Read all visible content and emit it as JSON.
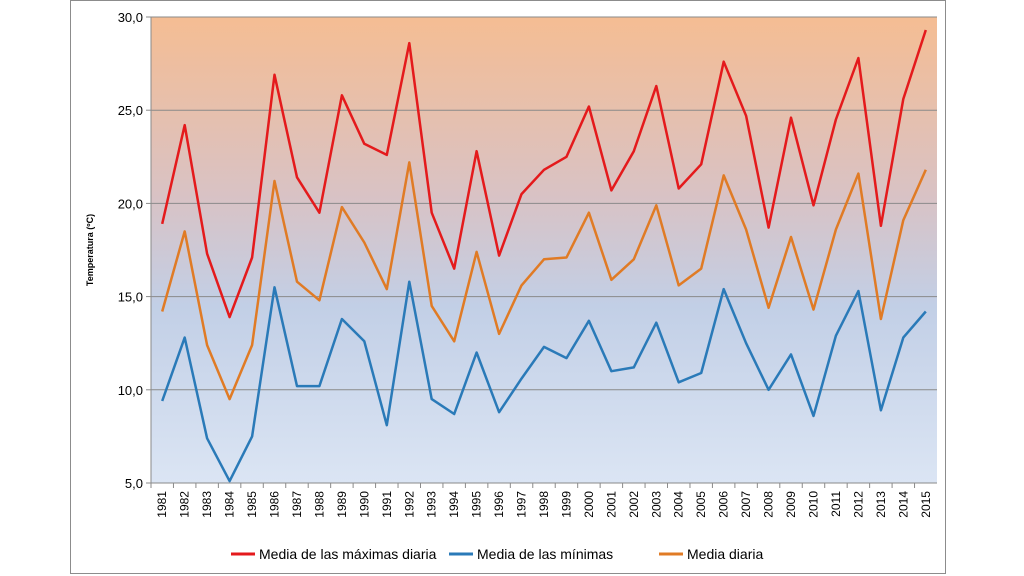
{
  "chart_data": {
    "type": "line",
    "title": "",
    "xlabel": "",
    "ylabel": "Temperatura (ºC)",
    "ylim": [
      5,
      30
    ],
    "yticks": [
      "5,0",
      "10,0",
      "15,0",
      "20,0",
      "25,0",
      "30,0"
    ],
    "grid": "horizontal",
    "legend_position": "bottom",
    "background": "gradient orange (top) to light blue (bottom)",
    "categories": [
      "1981",
      "1982",
      "1983",
      "1984",
      "1985",
      "1986",
      "1987",
      "1988",
      "1989",
      "1990",
      "1991",
      "1992",
      "1993",
      "1994",
      "1995",
      "1996",
      "1997",
      "1998",
      "1999",
      "2000",
      "2001",
      "2002",
      "2003",
      "2004",
      "2005",
      "2006",
      "2007",
      "2008",
      "2009",
      "2010",
      "2011",
      "2012",
      "2013",
      "2014",
      "2015"
    ],
    "series": [
      {
        "name": "Media de las máximas diaria",
        "color": "#e41a1c",
        "values": [
          18.9,
          24.2,
          17.3,
          13.9,
          17.1,
          26.9,
          21.4,
          19.5,
          25.8,
          23.2,
          22.6,
          28.6,
          19.5,
          16.5,
          22.8,
          17.2,
          20.5,
          21.8,
          22.5,
          25.2,
          20.7,
          22.8,
          26.3,
          20.8,
          22.1,
          27.6,
          24.7,
          18.7,
          24.6,
          19.9,
          24.5,
          27.8,
          18.8,
          25.6,
          29.3
        ]
      },
      {
        "name": "Media de las mínimas",
        "color": "#2a7ab8",
        "values": [
          9.4,
          12.8,
          7.4,
          5.1,
          7.5,
          15.5,
          10.2,
          10.2,
          13.8,
          12.6,
          8.1,
          15.8,
          9.5,
          8.7,
          12.0,
          8.8,
          10.6,
          12.3,
          11.7,
          13.7,
          11.0,
          11.2,
          13.6,
          10.4,
          10.9,
          15.4,
          12.5,
          10.0,
          11.9,
          8.6,
          12.9,
          15.3,
          8.9,
          12.8,
          14.2
        ]
      },
      {
        "name": "Media diaria",
        "color": "#e07b25",
        "values": [
          14.2,
          18.5,
          12.4,
          9.5,
          12.4,
          21.2,
          15.8,
          14.8,
          19.8,
          17.9,
          15.4,
          22.2,
          14.5,
          12.6,
          17.4,
          13.0,
          15.6,
          17.0,
          17.1,
          19.5,
          15.9,
          17.0,
          19.9,
          15.6,
          16.5,
          21.5,
          18.6,
          14.4,
          18.2,
          14.3,
          18.6,
          21.6,
          13.8,
          19.1,
          21.8
        ]
      }
    ]
  }
}
